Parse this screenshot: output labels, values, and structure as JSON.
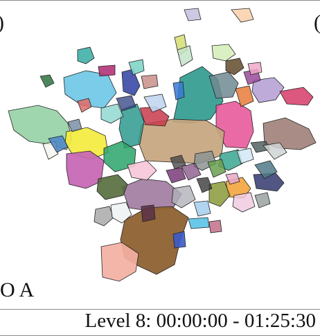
{
  "panel": {
    "left_label": ")",
    "right_label": "(",
    "sub_label": "O A",
    "caption": "Level 8: 00:00:00 - 01:25:30"
  },
  "colors": {
    "teal": "#2e9a8e",
    "skyblue": "#6cc7e6",
    "pink": "#e75a9a",
    "tan": "#c7a57f",
    "brown": "#8e6232",
    "sage": "#8fcfa0",
    "yellow": "#f4ea3e",
    "magenta": "#c665b4",
    "olive": "#546b3c",
    "mauve": "#a07aa0",
    "salmon": "#f4b0a3",
    "green": "#2aa46a",
    "navy": "#33386e",
    "crimson": "#c83a4a",
    "lavender": "#b7a2d6",
    "taupe": "#9e7f78"
  }
}
